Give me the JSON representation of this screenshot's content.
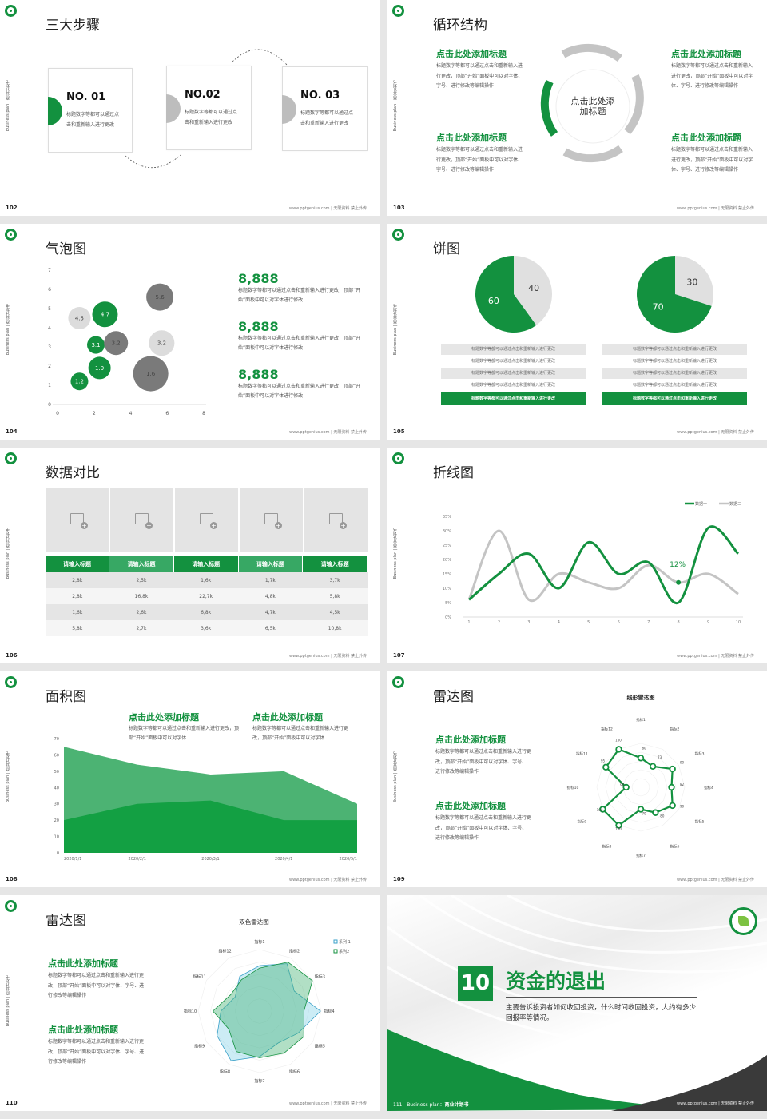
{
  "common": {
    "side_label": "Business plan | 商业计划书",
    "footer": "www.pptgenius.com | 无限资料 禁止外传"
  },
  "colors": {
    "green": "#13913f",
    "gray": "#bdbdbd",
    "dark_gray": "#7a7a7a",
    "light_gray": "#dcdcdc",
    "blue": "#3aa0c8"
  },
  "slides": [
    {
      "page": "102",
      "title": "三大步骤",
      "cards": [
        {
          "no": "NO. 01",
          "text": "标题数字等都可以通过点击和重新输入进行更改"
        },
        {
          "no": "NO.02",
          "text": "标题数字等都可以通过点击和重新输入进行更改"
        },
        {
          "no": "NO. 03",
          "text": "标题数字等都可以通过点击和重新输入进行更改"
        }
      ]
    },
    {
      "page": "103",
      "title": "循环结构",
      "center": "点击此处添加标题",
      "blocks": [
        {
          "title": "点击此处添加标题",
          "text": "标题数字等都可以通过点击和重新输入进行更改，顶部“开始”面板中可以对字体、字号、进行修改等编辑操作"
        },
        {
          "title": "点击此处添加标题",
          "text": "标题数字等都可以通过点击和重新输入进行更改，顶部“开始”面板中可以对字体、字号、进行修改等编辑操作"
        },
        {
          "title": "点击此处添加标题",
          "text": "标题数字等都可以通过点击和重新输入进行更改，顶部“开始”面板中可以对字体、字号、进行修改等编辑操作"
        },
        {
          "title": "点击此处添加标题",
          "text": "标题数字等都可以通过点击和重新输入进行更改，顶部“开始”面板中可以对字体、字号、进行修改等编辑操作"
        }
      ]
    },
    {
      "page": "104",
      "title": "气泡图",
      "stats": [
        {
          "value": "8,888",
          "text": "标题数字等都可以通过点击和重新输入进行更改，顶部“开始”面板中可以对字体进行修改"
        },
        {
          "value": "8,888",
          "text": "标题数字等都可以通过点击和重新输入进行更改，顶部“开始”面板中可以对字体进行修改"
        },
        {
          "value": "8,888",
          "text": "标题数字等都可以通过点击和重新输入进行更改，顶部“开始”面板中可以对字体进行修改"
        }
      ]
    },
    {
      "page": "105",
      "title": "饼图",
      "row_text": "标题数字等都可以通过点击和重新输入进行更改"
    },
    {
      "page": "106",
      "title": "数据对比",
      "headers": [
        "请输入标题",
        "请输入标题",
        "请输入标题",
        "请输入标题",
        "请输入标题"
      ],
      "rows": [
        [
          "2,8k",
          "2,5k",
          "1,6k",
          "1,7k",
          "3,7k"
        ],
        [
          "2,8k",
          "16,8k",
          "22,7k",
          "4,8k",
          "5,8k"
        ],
        [
          "1,6k",
          "2,6k",
          "6,8k",
          "4,7k",
          "4,5k"
        ],
        [
          "5,8k",
          "2,7k",
          "3,6k",
          "6,5k",
          "10,8k"
        ]
      ]
    },
    {
      "page": "107",
      "title": "折线图",
      "annotation": "12%"
    },
    {
      "page": "108",
      "title": "面积图",
      "blocks": [
        {
          "title": "点击此处添加标题",
          "text": "标题数字等都可以通过点击和重新输入进行更改，顶部“开始”面板中可以对字体"
        },
        {
          "title": "点击此处添加标题",
          "text": "标题数字等都可以通过点击和重新输入进行更改，顶部“开始”面板中可以对字体"
        }
      ]
    },
    {
      "page": "109",
      "title": "雷达图",
      "blocks": [
        {
          "title": "点击此处添加标题",
          "text": "标题数字等都可以通过点击和重新输入进行更改，顶部“开始”面板中可以对字体、字号、进行修改等编辑操作"
        },
        {
          "title": "点击此处添加标题",
          "text": "标题数字等都可以通过点击和重新输入进行更改，顶部“开始”面板中可以对字体、字号、进行修改等编辑操作"
        }
      ]
    },
    {
      "page": "110",
      "title": "雷达图",
      "blocks": [
        {
          "title": "点击此处添加标题",
          "text": "标题数字等都可以通过点击和重新输入进行更改，顶部“开始”面板中可以对字体、字号、进行修改等编辑操作"
        },
        {
          "title": "点击此处添加标题",
          "text": "标题数字等都可以通过点击和重新输入进行更改，顶部“开始”面板中可以对字体、字号、进行修改等编辑操作"
        }
      ]
    },
    {
      "page": "111",
      "number": "10",
      "title": "资金的退出",
      "desc": "主要告诉投资者如何收回投资，什么时间收回投资，大约有多少回报率等情况。",
      "bottom_label": "Business plan：",
      "bottom_label_bold": "商业计划书"
    }
  ],
  "chart_data": [
    {
      "type": "scatter",
      "subtype": "bubble",
      "xlim": [
        0,
        8
      ],
      "ylim": [
        0,
        7
      ],
      "xticks": [
        0,
        2,
        4,
        6,
        8
      ],
      "yticks": [
        0,
        1,
        2,
        3,
        4,
        5,
        6,
        7
      ],
      "points": [
        {
          "x": 1.2,
          "y": 1.2,
          "size": 11,
          "label": "1.2",
          "color": "green"
        },
        {
          "x": 2.3,
          "y": 1.9,
          "size": 14,
          "label": "1.9",
          "color": "green"
        },
        {
          "x": 2.1,
          "y": 3.1,
          "size": 11,
          "label": "3.1",
          "color": "green"
        },
        {
          "x": 2.6,
          "y": 4.7,
          "size": 16,
          "label": "4.7",
          "color": "green"
        },
        {
          "x": 1.2,
          "y": 4.5,
          "size": 14,
          "label": "4.5",
          "color": "light_gray"
        },
        {
          "x": 3.2,
          "y": 3.2,
          "size": 15,
          "label": "3.2",
          "color": "dark_gray"
        },
        {
          "x": 5.6,
          "y": 5.6,
          "size": 17,
          "label": "5.6",
          "color": "dark_gray"
        },
        {
          "x": 5.7,
          "y": 3.2,
          "size": 16,
          "label": "3.2",
          "color": "light_gray"
        },
        {
          "x": 5.1,
          "y": 1.6,
          "size": 22,
          "label": "1.6",
          "color": "dark_gray"
        }
      ]
    },
    {
      "type": "pie",
      "values": [
        40,
        60
      ],
      "labels": [
        "40",
        "60"
      ]
    },
    {
      "type": "pie",
      "values": [
        30,
        70
      ],
      "labels": [
        "30",
        "70"
      ]
    },
    {
      "type": "line",
      "x": [
        1,
        2,
        3,
        4,
        5,
        6,
        7,
        8,
        9,
        10
      ],
      "ylim": [
        0,
        35
      ],
      "yticks": [
        "0%",
        "5%",
        "10%",
        "15%",
        "20%",
        "25%",
        "30%",
        "35%"
      ],
      "legend": "top-right",
      "series": [
        {
          "name": "数据一",
          "values": [
            6,
            15,
            22,
            10,
            26,
            15,
            19,
            5,
            31,
            22
          ],
          "color": "green"
        },
        {
          "name": "数据二",
          "values": [
            6,
            30,
            6,
            15,
            12,
            10,
            18,
            12,
            15,
            8
          ],
          "color": "gray"
        }
      ]
    },
    {
      "type": "area",
      "categories": [
        "2020/1/1",
        "2020/2/1",
        "2020/3/1",
        "2020/4/1",
        "2020/5/1"
      ],
      "ylim": [
        0,
        70
      ],
      "yticks": [
        0,
        10,
        20,
        30,
        40,
        50,
        60,
        70
      ],
      "series": [
        {
          "values": [
            65,
            54,
            48,
            50,
            30
          ],
          "color": "#4cb373"
        },
        {
          "values": [
            20,
            30,
            32,
            20,
            20
          ],
          "color": "#13a043"
        }
      ]
    },
    {
      "type": "radar",
      "title": "线形雷达图",
      "axes": [
        "指标1",
        "指标2",
        "指标3",
        "指标4",
        "指标5",
        "指标6",
        "指标7",
        "指标8",
        "指标9",
        "指标10",
        "指标11",
        "指标12"
      ],
      "values": [
        80,
        73,
        90,
        82,
        90,
        80,
        70,
        100,
        100,
        60,
        95,
        100
      ],
      "rlim": [
        40,
        100
      ]
    },
    {
      "type": "radar",
      "title": "双色雷达图",
      "axes": [
        "指标1",
        "指标2",
        "指标3",
        "指标4",
        "指标5",
        "指标6",
        "指标7",
        "指标8",
        "指标9",
        "指标10",
        "指标11",
        "指标12"
      ],
      "rlim": [
        0,
        100
      ],
      "legend": "top-right",
      "series": [
        {
          "name": "系列 1",
          "values": [
            74,
            89,
            65,
            99,
            72,
            60,
            74,
            93,
            80,
            63,
            46,
            65
          ],
          "color": "#3aa0c8"
        },
        {
          "name": "系列2",
          "values": [
            70,
            92,
            99,
            72,
            83,
            79,
            76,
            76,
            58,
            76,
            54,
            59
          ],
          "color": "#13913f"
        }
      ]
    }
  ]
}
